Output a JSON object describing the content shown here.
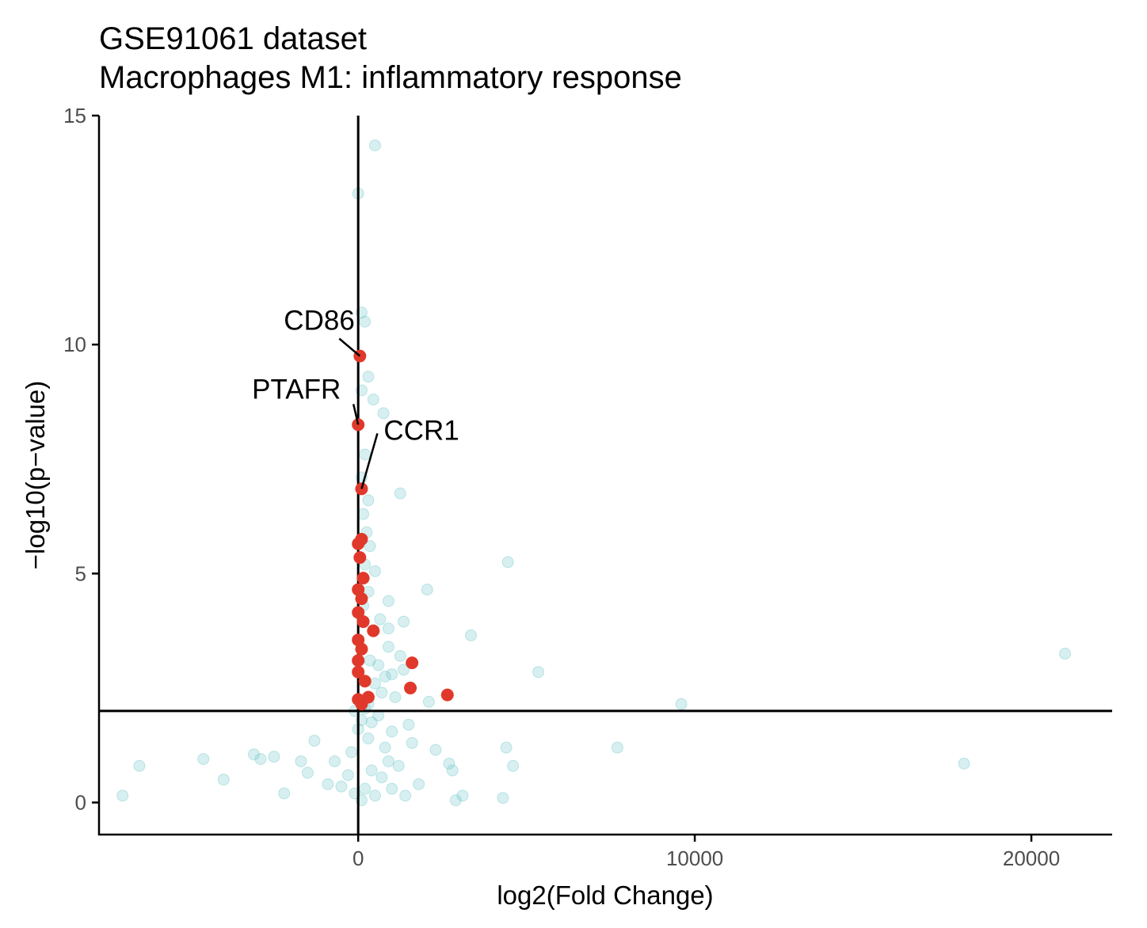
{
  "chart_data": {
    "type": "scatter",
    "title": "GSE91061 dataset",
    "subtitle": "Macrophages M1: inflammatory response",
    "xlabel": "log2(Fold Change)",
    "ylabel": "−log10(p−value)",
    "xlim": [
      -7700,
      22400
    ],
    "ylim": [
      -0.7,
      15.0
    ],
    "x_ticks": [
      0,
      10000,
      20000
    ],
    "x_tick_labels": [
      "0",
      "10000",
      "20000"
    ],
    "y_ticks": [
      0,
      5,
      10,
      15
    ],
    "y_tick_labels": [
      "0",
      "5",
      "10",
      "15"
    ],
    "grid": false,
    "reference_lines": {
      "vertical_x": 0,
      "horizontal_y": 2
    },
    "colors": {
      "background_points": "#5fc0c4",
      "highlight_points": "#e0392b",
      "axis": "#000000"
    },
    "series": [
      {
        "points": [
          [
            500,
            14.35
          ],
          [
            0,
            13.3
          ],
          [
            100,
            10.7
          ],
          [
            200,
            10.5
          ],
          [
            300,
            9.3
          ],
          [
            100,
            9.0
          ],
          [
            450,
            8.8
          ],
          [
            750,
            8.5
          ],
          [
            1250,
            6.75
          ],
          [
            4450,
            5.25
          ],
          [
            2050,
            4.65
          ],
          [
            900,
            4.4
          ],
          [
            1350,
            3.95
          ],
          [
            3350,
            3.65
          ],
          [
            5350,
            2.85
          ],
          [
            9600,
            2.15
          ],
          [
            21000,
            3.25
          ],
          [
            900,
            3.4
          ],
          [
            1250,
            3.2
          ],
          [
            200,
            7.6
          ],
          [
            100,
            7.1
          ],
          [
            300,
            6.6
          ],
          [
            150,
            6.3
          ],
          [
            250,
            5.9
          ],
          [
            350,
            5.6
          ],
          [
            200,
            5.2
          ],
          [
            500,
            5.05
          ],
          [
            300,
            4.6
          ],
          [
            150,
            4.3
          ],
          [
            650,
            4.0
          ],
          [
            900,
            3.8
          ],
          [
            350,
            3.1
          ],
          [
            600,
            3.0
          ],
          [
            800,
            2.75
          ],
          [
            1000,
            2.8
          ],
          [
            1350,
            2.9
          ],
          [
            500,
            2.6
          ],
          [
            700,
            2.4
          ],
          [
            1100,
            2.3
          ],
          [
            2100,
            2.2
          ],
          [
            300,
            2.15
          ],
          [
            -7000,
            0.15
          ],
          [
            -6500,
            0.8
          ],
          [
            -4600,
            0.95
          ],
          [
            -4000,
            0.5
          ],
          [
            -3100,
            1.05
          ],
          [
            -2900,
            0.95
          ],
          [
            -2500,
            1.0
          ],
          [
            -2200,
            0.2
          ],
          [
            -1700,
            0.9
          ],
          [
            -1500,
            0.65
          ],
          [
            -1300,
            1.35
          ],
          [
            -900,
            0.4
          ],
          [
            -700,
            0.9
          ],
          [
            -500,
            0.35
          ],
          [
            -300,
            0.6
          ],
          [
            -200,
            1.1
          ],
          [
            -100,
            0.2
          ],
          [
            100,
            0.05
          ],
          [
            200,
            0.3
          ],
          [
            300,
            1.4
          ],
          [
            400,
            0.7
          ],
          [
            500,
            0.15
          ],
          [
            700,
            0.55
          ],
          [
            800,
            1.2
          ],
          [
            900,
            0.9
          ],
          [
            1000,
            0.3
          ],
          [
            1200,
            0.8
          ],
          [
            1400,
            0.15
          ],
          [
            1600,
            1.3
          ],
          [
            1800,
            0.4
          ],
          [
            2300,
            1.15
          ],
          [
            2700,
            0.85
          ],
          [
            2800,
            0.7
          ],
          [
            2900,
            0.05
          ],
          [
            3100,
            0.15
          ],
          [
            4300,
            0.1
          ],
          [
            4400,
            1.2
          ],
          [
            4600,
            0.8
          ],
          [
            7700,
            1.2
          ],
          [
            18000,
            0.85
          ],
          [
            0,
            1.6
          ],
          [
            -100,
            2.0
          ],
          [
            100,
            1.8
          ],
          [
            200,
            2.05
          ],
          [
            400,
            1.75
          ],
          [
            600,
            1.9
          ],
          [
            1000,
            1.55
          ],
          [
            1500,
            1.7
          ]
        ]
      },
      {
        "points": [
          [
            50,
            9.75
          ],
          [
            0,
            8.25
          ],
          [
            100,
            6.85
          ],
          [
            0,
            5.65
          ],
          [
            100,
            5.75
          ],
          [
            50,
            5.35
          ],
          [
            150,
            4.9
          ],
          [
            0,
            4.65
          ],
          [
            100,
            4.45
          ],
          [
            0,
            4.15
          ],
          [
            150,
            3.95
          ],
          [
            450,
            3.75
          ],
          [
            0,
            3.55
          ],
          [
            100,
            3.35
          ],
          [
            0,
            3.1
          ],
          [
            1600,
            3.05
          ],
          [
            0,
            2.85
          ],
          [
            200,
            2.65
          ],
          [
            1550,
            2.5
          ],
          [
            2650,
            2.35
          ],
          [
            300,
            2.3
          ],
          [
            0,
            2.25
          ],
          [
            100,
            2.15
          ]
        ]
      }
    ],
    "annotations": [
      {
        "label": "CD86",
        "x": 50,
        "y": 9.75
      },
      {
        "label": "PTAFR",
        "x": 0,
        "y": 8.25
      },
      {
        "label": "CCR1",
        "x": 100,
        "y": 6.85
      }
    ]
  }
}
